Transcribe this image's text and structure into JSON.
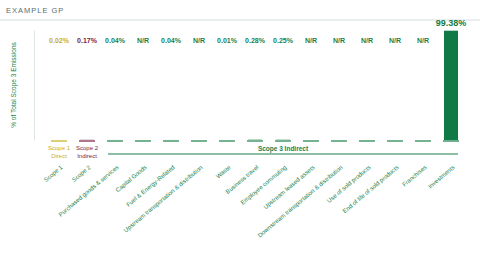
{
  "chart_data": {
    "type": "bar",
    "title": "EXAMPLE GP",
    "y_label": "% of Total Scope 3 Emissions",
    "categories": [
      "Scope 1",
      "Scope 2",
      "Purchased goods & services",
      "Capital Goods",
      "Fuel & Energy-Related",
      "Upstream transportation & distribution",
      "Waste",
      "Business travel",
      "Employee commuting",
      "Upstream leased assets",
      "Downstream transportation & distribution",
      "Use of sold products",
      "End of life of sold products",
      "Franchises",
      "Investments"
    ],
    "values": [
      0.02,
      0.17,
      0.04,
      null,
      0.04,
      null,
      0.01,
      0.28,
      0.25,
      null,
      null,
      null,
      null,
      null,
      99.38
    ],
    "value_labels": [
      "0.02%",
      "0.17%",
      "0.04%",
      "N/R",
      "0.04%",
      "N/R",
      "0.01%",
      "0.28%",
      "0.25%",
      "N/R",
      "N/R",
      "N/R",
      "N/R",
      "N/R",
      "99.38%"
    ],
    "colors": [
      "#c9ae1c",
      "#7b1e43",
      "#1a7f4b",
      "#1a7f4b",
      "#1a7f4b",
      "#1a7f4b",
      "#1a7f4b",
      "#1a7f4b",
      "#1a7f4b",
      "#1a7f4b",
      "#1a7f4b",
      "#1a7f4b",
      "#1a7f4b",
      "#1a7f4b",
      "#0f7a45"
    ],
    "annotations": [
      [
        "Scope 1",
        "Direct"
      ],
      [
        "Scope 2",
        "Indirect"
      ],
      [
        "Scope 3 Indirect"
      ]
    ],
    "ylim": [
      0,
      100
    ],
    "data_labels": true,
    "tick_labels": "x",
    "grid": false
  }
}
